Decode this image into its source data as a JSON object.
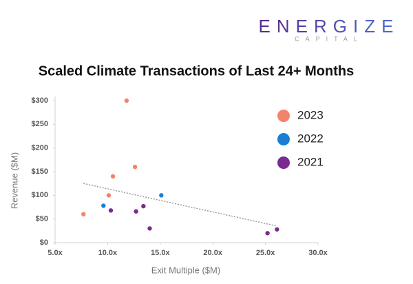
{
  "logo": {
    "name": "ENERGIZE",
    "tagline": "CAPITAL"
  },
  "chart_data": {
    "type": "scatter",
    "title": "Scaled Climate Transactions of Last 24+ Months",
    "x_label": "Exit Multiple ($M)",
    "y_label": "Revenue ($M)",
    "xlim": [
      5,
      30
    ],
    "ylim": [
      0,
      300
    ],
    "xticks": [
      {
        "value": 5,
        "label": "5.0x"
      },
      {
        "value": 10,
        "label": "10.0x"
      },
      {
        "value": 15,
        "label": "15.0x"
      },
      {
        "value": 20,
        "label": "20.0x"
      },
      {
        "value": 25,
        "label": "25.0x"
      },
      {
        "value": 30,
        "label": "30.0x"
      }
    ],
    "yticks": [
      {
        "value": 0,
        "label": "$0"
      },
      {
        "value": 50,
        "label": "$50"
      },
      {
        "value": 100,
        "label": "$100"
      },
      {
        "value": 150,
        "label": "$150"
      },
      {
        "value": 200,
        "label": "$200"
      },
      {
        "value": 250,
        "label": "$250"
      },
      {
        "value": 300,
        "label": "$300"
      }
    ],
    "grid": false,
    "legend": "right",
    "series": [
      {
        "name": "2023",
        "color": "#f4836b",
        "x": [
          7.7,
          10.1,
          10.5,
          11.8,
          12.6
        ],
        "values": [
          60,
          100,
          140,
          300,
          160
        ]
      },
      {
        "name": "2022",
        "color": "#1a7fd4",
        "x": [
          9.6,
          15.1
        ],
        "values": [
          78,
          100
        ]
      },
      {
        "name": "2021",
        "color": "#7b2a90",
        "x": [
          10.3,
          13.4,
          12.7,
          14.0,
          25.2,
          26.1
        ],
        "values": [
          68,
          77,
          66,
          30,
          20,
          28
        ]
      }
    ],
    "trendline": {
      "x": [
        7.7,
        26.1
      ],
      "values": [
        125,
        35
      ],
      "color": "#999999"
    }
  }
}
